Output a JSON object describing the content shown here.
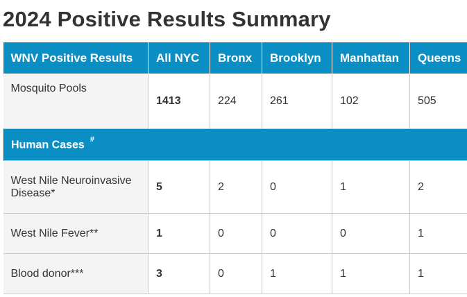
{
  "page_title": "2024 Positive Results Summary",
  "columns": [
    "WNV Positive Results",
    "All NYC",
    "Bronx",
    "Brooklyn",
    "Manhattan",
    "Queens"
  ],
  "mosquito_pools": {
    "label": "Mosquito Pools",
    "values": [
      "1413",
      "224",
      "261",
      "102",
      "505"
    ]
  },
  "human_cases": {
    "label": "Human Cases",
    "marker": "#"
  },
  "rows": [
    {
      "label": "West Nile Neuroinvasive Disease*",
      "values": [
        "5",
        "2",
        "0",
        "1",
        "2"
      ]
    },
    {
      "label": "West Nile Fever**",
      "values": [
        "1",
        "0",
        "0",
        "0",
        "1"
      ]
    },
    {
      "label": "Blood donor***",
      "values": [
        "3",
        "0",
        "1",
        "1",
        "1"
      ]
    }
  ]
}
